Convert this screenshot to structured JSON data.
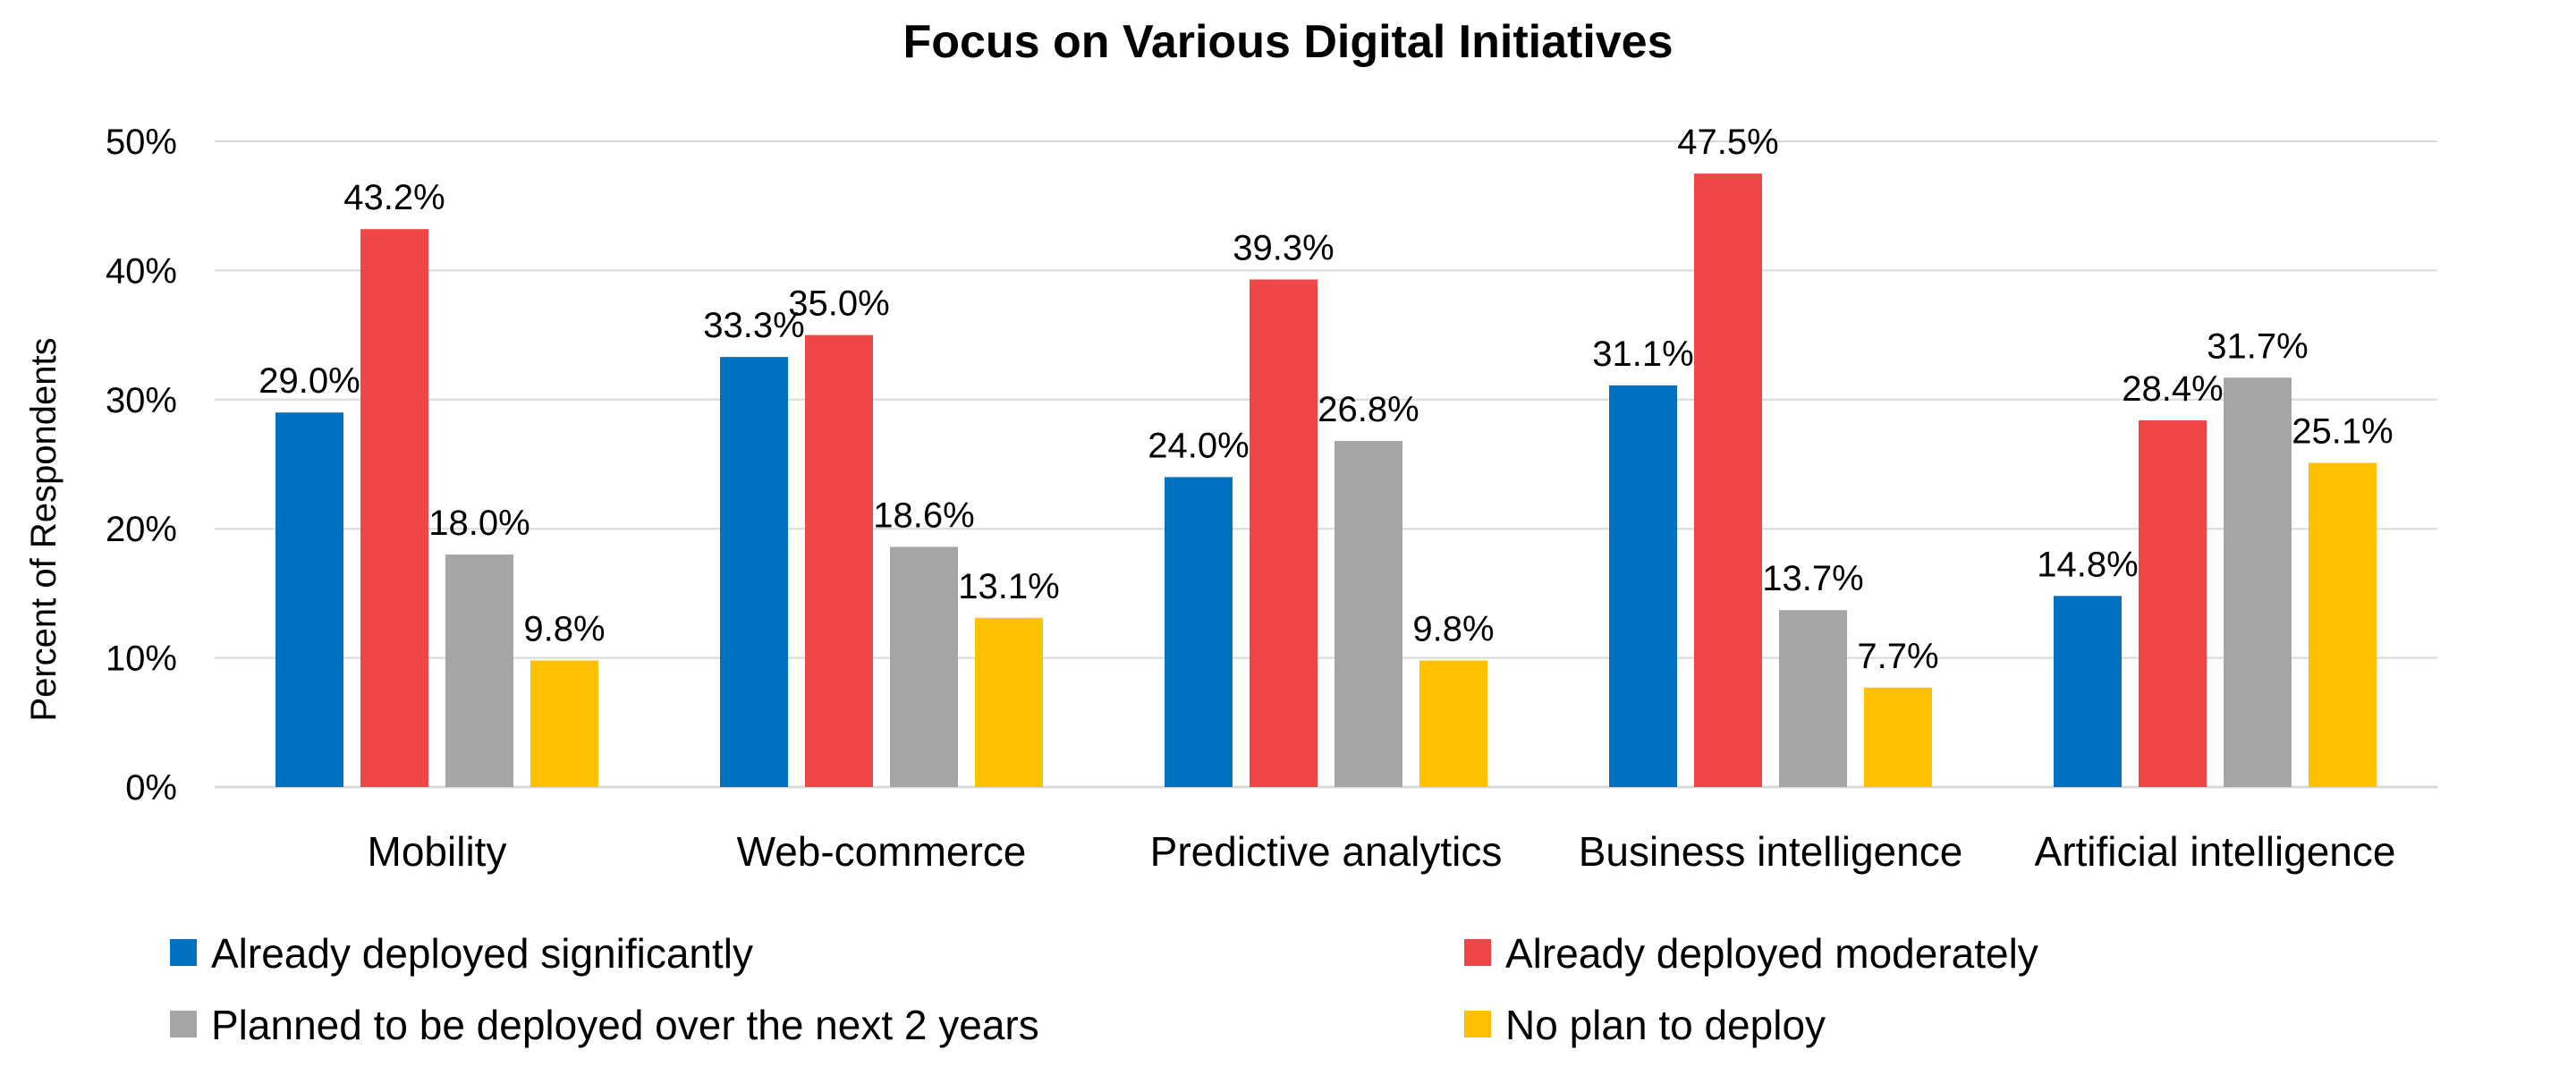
{
  "chart_data": {
    "type": "bar",
    "title": "Focus on Various Digital Initiatives",
    "ylabel": "Percent of Respondents",
    "xlabel": "",
    "ylim": [
      0,
      50
    ],
    "yticks": [
      "0%",
      "10%",
      "20%",
      "30%",
      "40%",
      "50%"
    ],
    "ytick_values": [
      0,
      10,
      20,
      30,
      40,
      50
    ],
    "grid": true,
    "legend_position": "bottom",
    "categories": [
      "Mobility",
      "Web-commerce",
      "Predictive analytics",
      "Business intelligence",
      "Artificial intelligence"
    ],
    "series": [
      {
        "name": "Already deployed significantly",
        "color": "#0070c0",
        "values": [
          29.0,
          33.3,
          24.0,
          31.1,
          14.8
        ],
        "labels": [
          "29.0%",
          "33.3%",
          "24.0%",
          "31.1%",
          "14.8%"
        ]
      },
      {
        "name": "Already deployed moderately",
        "color": "#ef4747",
        "values": [
          43.2,
          35.0,
          39.3,
          47.5,
          28.4
        ],
        "labels": [
          "43.2%",
          "35.0%",
          "39.3%",
          "47.5%",
          "28.4%"
        ]
      },
      {
        "name": "Planned to be deployed over the next 2 years",
        "color": "#a5a5a5",
        "values": [
          18.0,
          18.6,
          26.8,
          13.7,
          31.7
        ],
        "labels": [
          "18.0%",
          "18.6%",
          "26.8%",
          "13.7%",
          "31.7%"
        ]
      },
      {
        "name": "No plan to deploy",
        "color": "#ffc000",
        "values": [
          9.8,
          13.1,
          9.8,
          7.7,
          25.1
        ],
        "labels": [
          "9.8%",
          "13.1%",
          "9.8%",
          "7.7%",
          "25.1%"
        ]
      }
    ]
  }
}
